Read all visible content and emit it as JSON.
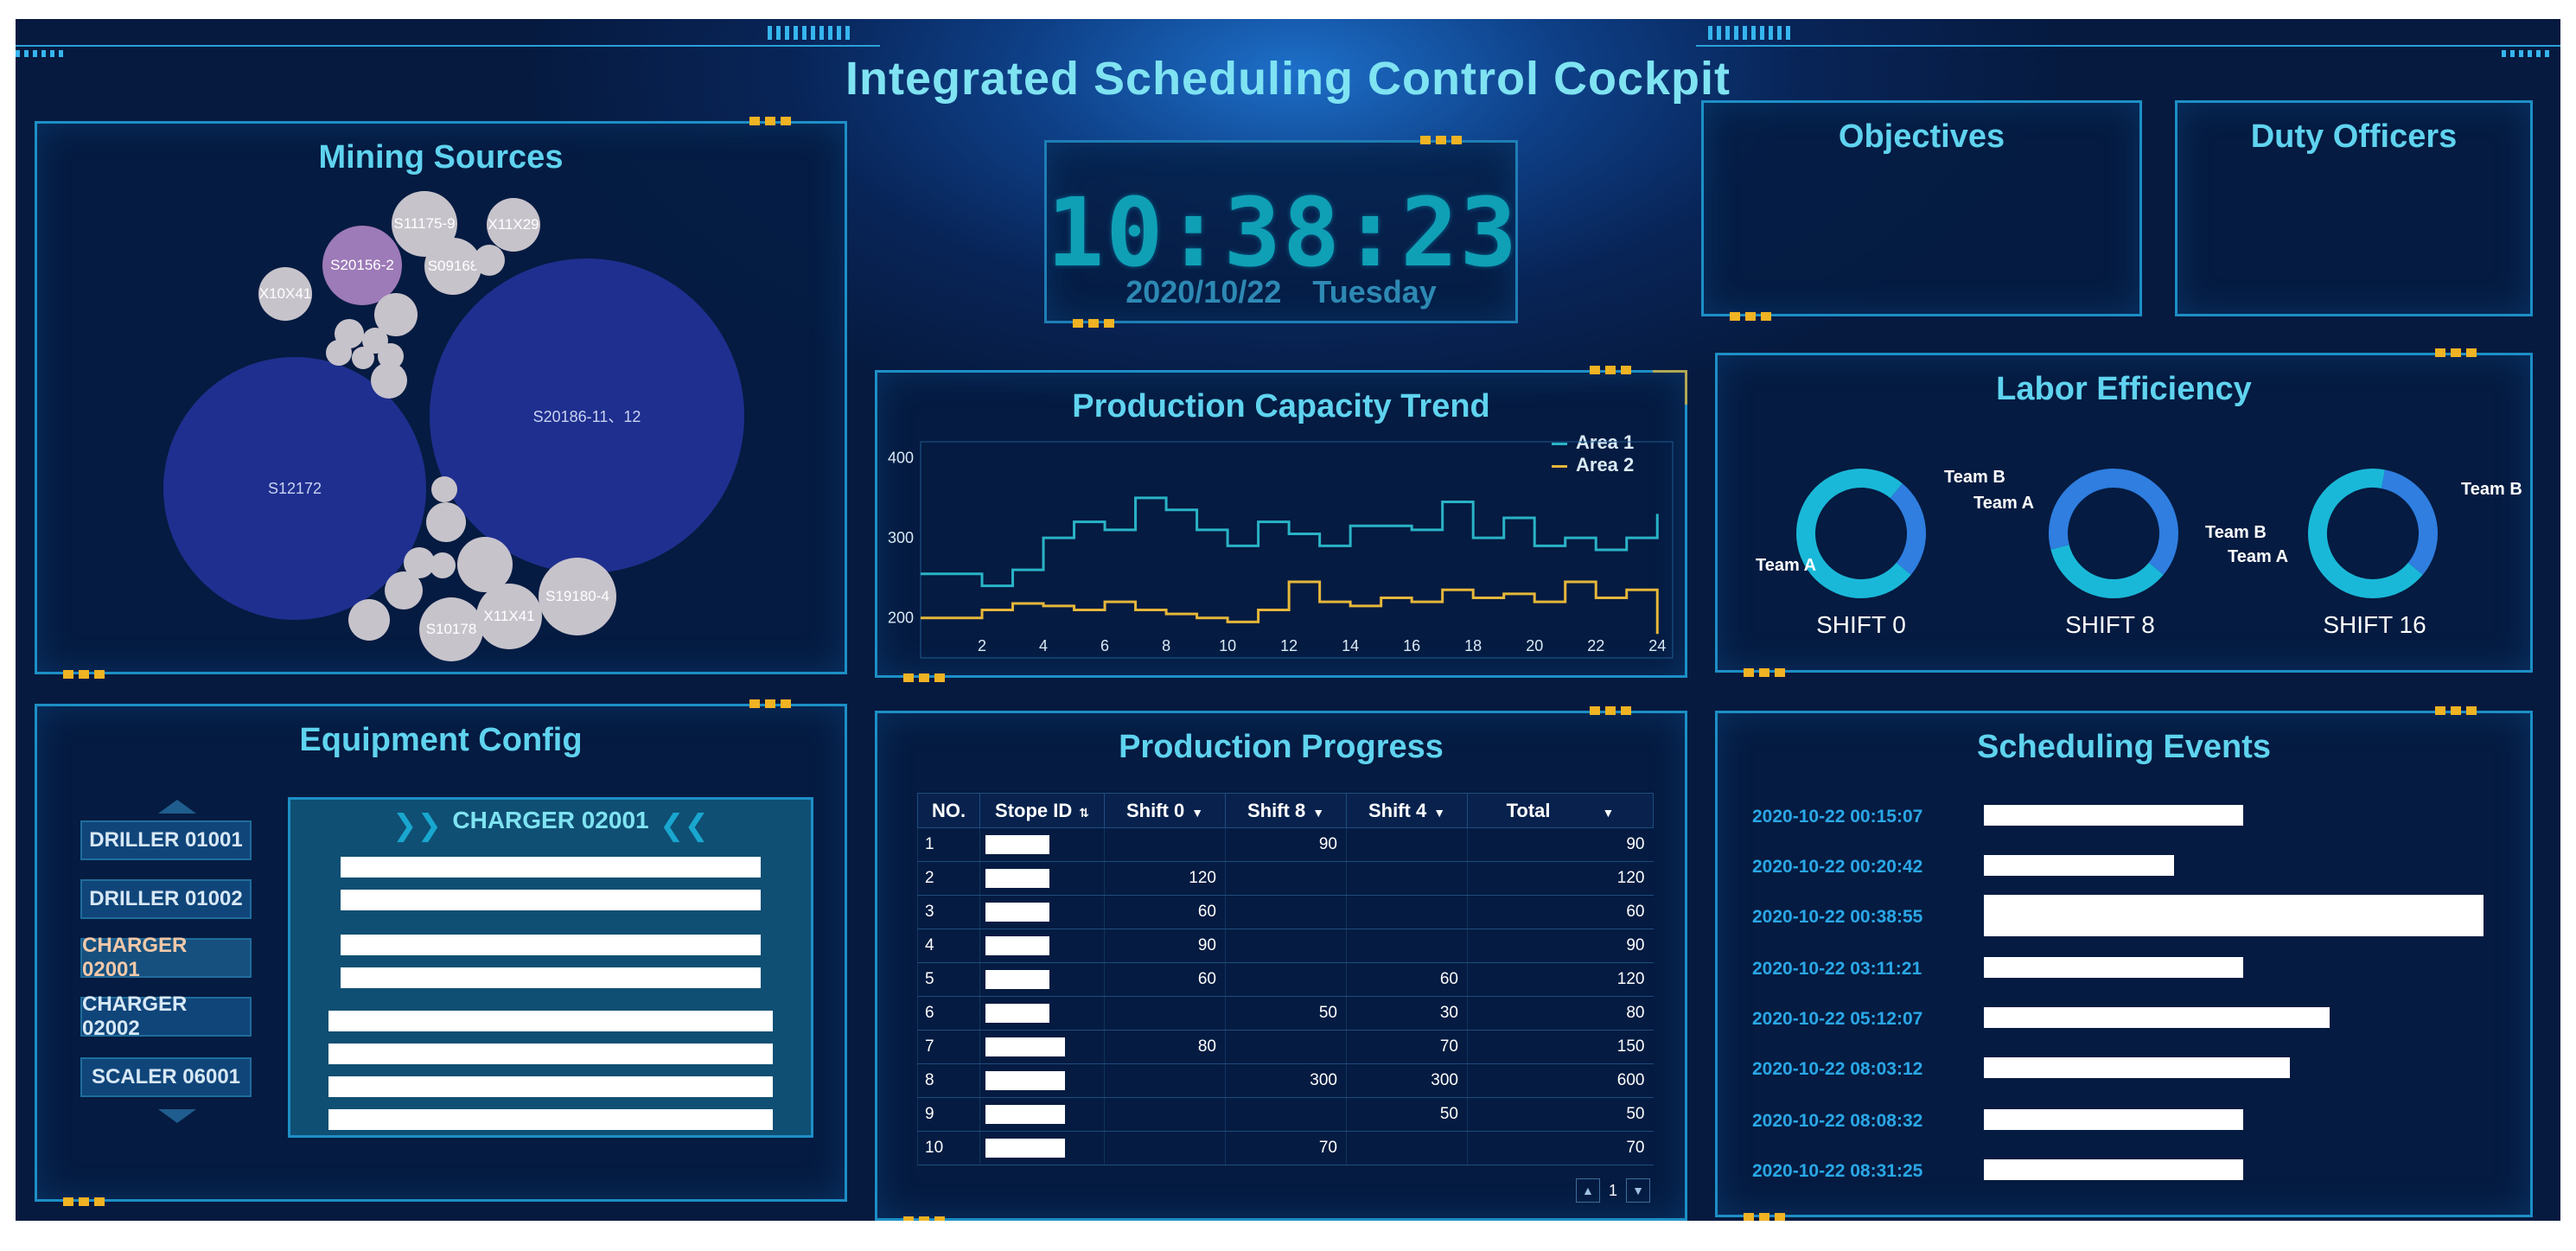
{
  "header": {
    "title": "Integrated Scheduling Control Cockpit"
  },
  "colors": {
    "accent": "#5fd3ef",
    "area1": "#2ab3c7",
    "area2": "#e6b73a",
    "team_a": "#1ab8d8",
    "team_b": "#2f7ee0"
  },
  "mining_sources": {
    "title": "Mining Sources",
    "labels": [
      "S11175-9",
      "X11X29",
      "S20156-2",
      "S09168",
      "X10X41",
      "S20186-11、12",
      "S12172",
      "S19180-4",
      "S10178",
      "X11X41"
    ]
  },
  "clock": {
    "time": "10:38:23",
    "date": "2020/10/22",
    "weekday": "Tuesday"
  },
  "objectives": {
    "title": "Objectives"
  },
  "duty_officers": {
    "title": "Duty Officers"
  },
  "capacity_trend": {
    "title": "Production Capacity Trend",
    "legend": [
      "Area 1",
      "Area 2"
    ]
  },
  "chart_data": {
    "type": "line",
    "title": "Production Capacity Trend",
    "x": [
      1,
      2,
      3,
      4,
      5,
      6,
      7,
      8,
      9,
      10,
      11,
      12,
      13,
      14,
      15,
      16,
      17,
      18,
      19,
      20,
      21,
      22,
      23,
      24
    ],
    "x_ticks": [
      2,
      4,
      6,
      8,
      10,
      12,
      14,
      16,
      18,
      20,
      22,
      24
    ],
    "y_ticks": [
      200,
      300,
      400
    ],
    "ylim": [
      150,
      420
    ],
    "xlim": [
      0,
      24.5
    ],
    "series": [
      {
        "name": "Area 1",
        "values": [
          255,
          240,
          260,
          300,
          320,
          310,
          350,
          335,
          310,
          290,
          320,
          305,
          290,
          315,
          315,
          310,
          345,
          300,
          325,
          290,
          300,
          285,
          300,
          330
        ]
      },
      {
        "name": "Area 2",
        "values": [
          200,
          210,
          218,
          215,
          210,
          220,
          210,
          205,
          200,
          195,
          210,
          245,
          220,
          215,
          225,
          220,
          235,
          225,
          230,
          220,
          245,
          225,
          235,
          180
        ]
      }
    ]
  },
  "labor_efficiency": {
    "title": "Labor Efficiency",
    "shifts": [
      {
        "label": "SHIFT 0",
        "team_a": 0.75,
        "label_a": "Team A",
        "label_b": "Team B"
      },
      {
        "label": "SHIFT 8",
        "team_a": 0.35,
        "label_a": "Team A",
        "label_b": "Team B"
      },
      {
        "label": "SHIFT 16",
        "team_a": 0.67,
        "label_a": "Team A",
        "label_b": "Team B"
      }
    ]
  },
  "equipment": {
    "title": "Equipment Config",
    "items": [
      "DRILLER   01001",
      "DRILLER   01002",
      "CHARGER 02001",
      "CHARGER 02002",
      "SCALER   06001"
    ],
    "selected": "CHARGER 02001"
  },
  "progress": {
    "title": "Production Progress",
    "columns": [
      "NO.",
      "Stope ID",
      "Shift 0",
      "Shift 8",
      "Shift 4",
      "Total"
    ],
    "rows": [
      {
        "no": "1",
        "s0": "",
        "s8": "90",
        "s4": "",
        "total": "90"
      },
      {
        "no": "2",
        "s0": "120",
        "s8": "",
        "s4": "",
        "total": "120"
      },
      {
        "no": "3",
        "s0": "60",
        "s8": "",
        "s4": "",
        "total": "60"
      },
      {
        "no": "4",
        "s0": "90",
        "s8": "",
        "s4": "",
        "total": "90"
      },
      {
        "no": "5",
        "s0": "60",
        "s8": "",
        "s4": "60",
        "total": "120"
      },
      {
        "no": "6",
        "s0": "",
        "s8": "50",
        "s4": "30",
        "total": "80"
      },
      {
        "no": "7",
        "s0": "80",
        "s8": "",
        "s4": "70",
        "total": "150"
      },
      {
        "no": "8",
        "s0": "",
        "s8": "300",
        "s4": "300",
        "total": "600"
      },
      {
        "no": "9",
        "s0": "",
        "s8": "",
        "s4": "50",
        "total": "50"
      },
      {
        "no": "10",
        "s0": "",
        "s8": "70",
        "s4": "",
        "total": "70"
      }
    ],
    "page": "1"
  },
  "events": {
    "title": "Scheduling Events",
    "times": [
      "2020-10-22  00:15:07",
      "2020-10-22  00:20:42",
      "2020-10-22  00:38:55",
      "2020-10-22  03:11:21",
      "2020-10-22  05:12:07",
      "2020-10-22  08:03:12",
      "2020-10-22  08:08:32",
      "2020-10-22  08:31:25"
    ]
  }
}
